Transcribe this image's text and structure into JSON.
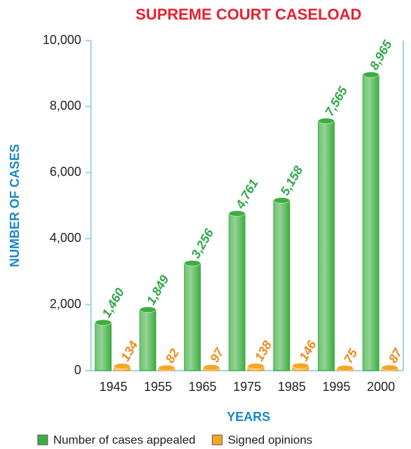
{
  "chart_data": {
    "type": "bar",
    "title": "SUPREME COURT CASELOAD",
    "xlabel": "YEARS",
    "ylabel": "NUMBER OF CASES",
    "categories": [
      "1945",
      "1955",
      "1965",
      "1975",
      "1985",
      "1995",
      "2000"
    ],
    "series": [
      {
        "name": "Number of cases appealed",
        "color": "#3cae3f",
        "label_color": "#2fa84a",
        "values": [
          1460,
          1849,
          3256,
          4761,
          5158,
          7565,
          8965
        ],
        "value_labels": [
          "1,460",
          "1,849",
          "3,256",
          "4,761",
          "5,158",
          "7,565",
          "8,965"
        ]
      },
      {
        "name": "Signed opinions",
        "color": "#f5a623",
        "label_color": "#f08a1c",
        "values": [
          134,
          82,
          97,
          138,
          146,
          75,
          87
        ]
      }
    ],
    "ylim": [
      0,
      10000
    ],
    "yticks": [
      0,
      {
        "value": 2000,
        "label": "2,000"
      },
      {
        "value": 4000,
        "label": "4,000"
      },
      {
        "value": 6000,
        "label": "6,000"
      },
      {
        "value": 8000,
        "label": "8,000"
      },
      {
        "value": 10000,
        "label": "10,000"
      }
    ],
    "legend": "bottom"
  }
}
